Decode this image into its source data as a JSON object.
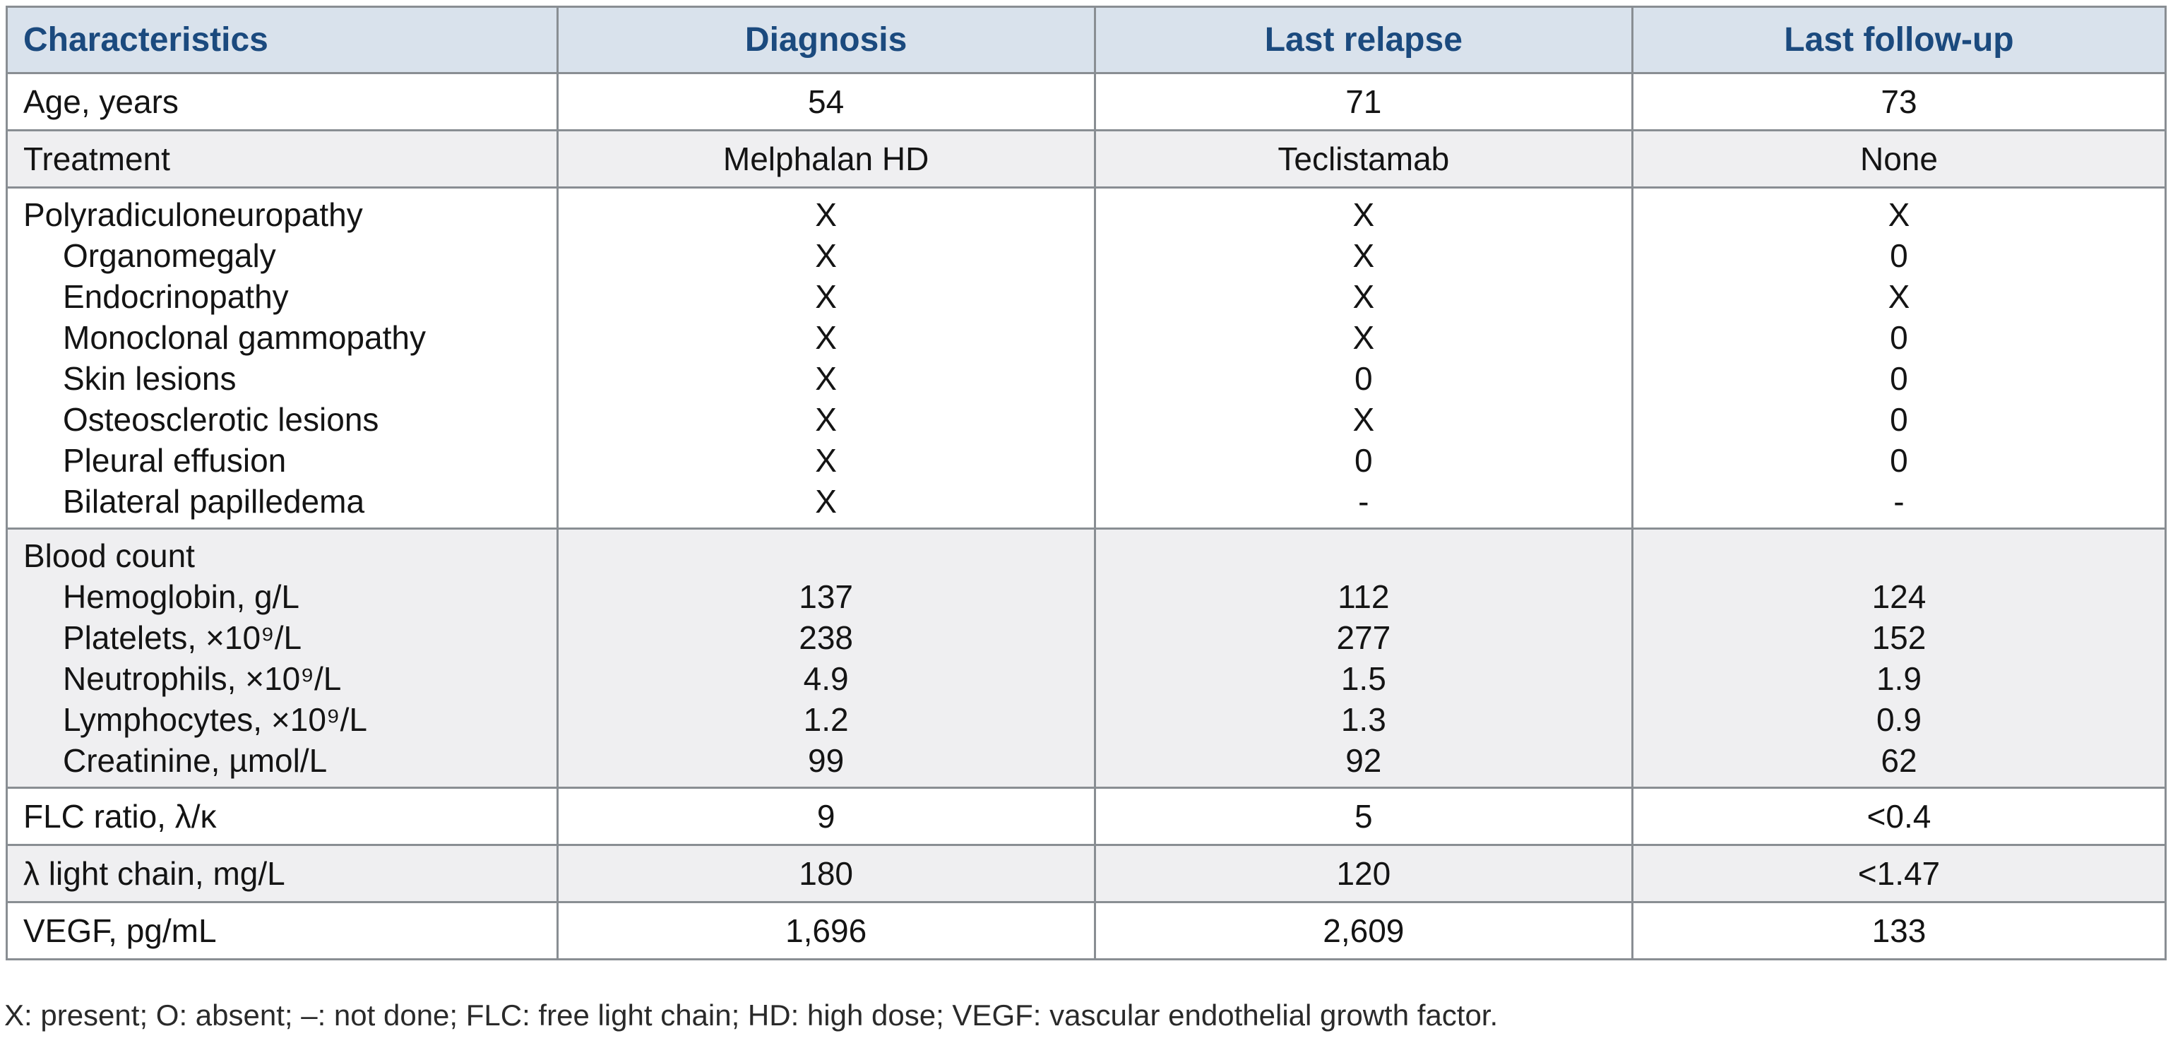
{
  "colors": {
    "header_bg": "#d9e2ec",
    "header_text": "#1b4a7e",
    "row_alt_bg": "#efeff1",
    "border": "#898e93",
    "text": "#141414",
    "footnote_text": "#2a2a2a"
  },
  "header": {
    "columns": [
      "Characteristics",
      "Diagnosis",
      "Last relapse",
      "Last follow-up"
    ]
  },
  "sections": [
    {
      "shade": "white",
      "lines": [
        {
          "label": "Age, years",
          "indent": false,
          "values": [
            "54",
            "71",
            "73"
          ]
        }
      ]
    },
    {
      "shade": "gray",
      "lines": [
        {
          "label": "Treatment",
          "indent": false,
          "values": [
            "Melphalan HD",
            "Teclistamab",
            "None"
          ]
        }
      ]
    },
    {
      "shade": "white",
      "lines": [
        {
          "label": "Polyradiculoneuropathy",
          "indent": false,
          "values": [
            "X",
            "X",
            "X"
          ]
        },
        {
          "label": "Organomegaly",
          "indent": true,
          "values": [
            "X",
            "X",
            "0"
          ]
        },
        {
          "label": "Endocrinopathy",
          "indent": true,
          "values": [
            "X",
            "X",
            "X"
          ]
        },
        {
          "label": "Monoclonal gammopathy",
          "indent": true,
          "values": [
            "X",
            "X",
            "0"
          ]
        },
        {
          "label": "Skin lesions",
          "indent": true,
          "values": [
            "X",
            "0",
            "0"
          ]
        },
        {
          "label": "Osteosclerotic lesions",
          "indent": true,
          "values": [
            "X",
            "X",
            "0"
          ]
        },
        {
          "label": "Pleural effusion",
          "indent": true,
          "values": [
            "X",
            "0",
            "0"
          ]
        },
        {
          "label": "Bilateral papilledema",
          "indent": true,
          "values": [
            "X",
            "-",
            "-"
          ]
        }
      ]
    },
    {
      "shade": "gray",
      "lines": [
        {
          "label": "Blood count",
          "indent": false,
          "values": [
            "",
            "",
            ""
          ]
        },
        {
          "label": "Hemoglobin, g/L",
          "indent": true,
          "values": [
            "137",
            "112",
            "124"
          ]
        },
        {
          "label": "Platelets, ×10⁹/L",
          "indent": true,
          "values": [
            "238",
            "277",
            "152"
          ]
        },
        {
          "label": "Neutrophils, ×10⁹/L",
          "indent": true,
          "values": [
            "4.9",
            "1.5",
            "1.9"
          ]
        },
        {
          "label": "Lymphocytes, ×10⁹/L",
          "indent": true,
          "values": [
            "1.2",
            "1.3",
            "0.9"
          ]
        },
        {
          "label": "Creatinine, µmol/L",
          "indent": true,
          "values": [
            "99",
            "92",
            "62"
          ]
        }
      ]
    },
    {
      "shade": "white",
      "lines": [
        {
          "label": "FLC ratio, λ/κ",
          "indent": false,
          "values": [
            "9",
            "5",
            "<0.4"
          ]
        }
      ]
    },
    {
      "shade": "gray",
      "lines": [
        {
          "label": "λ light chain, mg/L",
          "indent": false,
          "values": [
            "180",
            "120",
            "<1.47"
          ]
        }
      ]
    },
    {
      "shade": "white",
      "lines": [
        {
          "label": "VEGF, pg/mL",
          "indent": false,
          "values": [
            "1,696",
            "2,609",
            "133"
          ]
        }
      ]
    }
  ],
  "footnote": "X: present; O: absent; –: not done; FLC: free light chain; HD: high dose; VEGF: vascular endothelial growth factor."
}
